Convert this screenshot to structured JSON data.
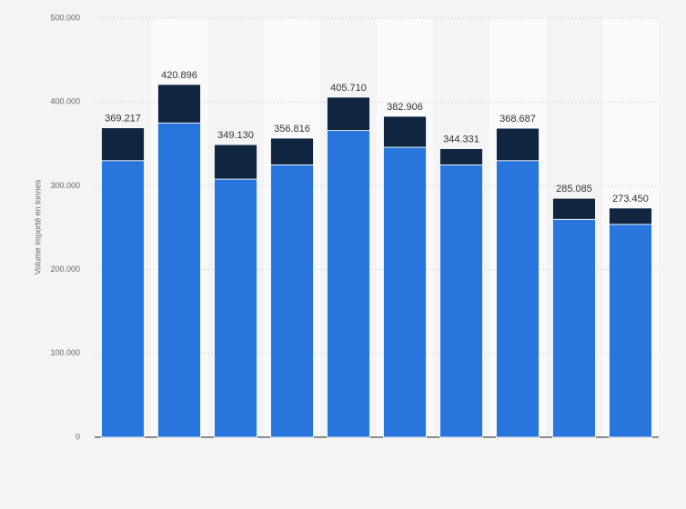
{
  "chart_data": {
    "type": "stacked-bar",
    "y_label": "Volume importé en tonnes",
    "categories": [
      null,
      null,
      null,
      null,
      null,
      null,
      null,
      null,
      null,
      null
    ],
    "series": [
      {
        "color": "#2876dd",
        "values": [
          330000,
          375000,
          308000,
          325000,
          366000,
          346000,
          325000,
          330000,
          260000,
          254000
        ]
      },
      {
        "color": "#0f2540",
        "values": [
          39217,
          45896,
          41130,
          31816,
          39710,
          36906,
          19331,
          38687,
          25085,
          19450
        ]
      }
    ],
    "totals": {
      "values": [
        369217,
        420896,
        349130,
        356816,
        405710,
        382906,
        344331,
        368687,
        285085,
        273450
      ],
      "value_labels": [
        "369.217",
        "420.896",
        "349.130",
        "356.816",
        "405.710",
        "382.906",
        "344.331",
        "368.687",
        "285.085",
        "273.450"
      ]
    },
    "ylim": [
      0,
      500000
    ],
    "yticks": [
      0,
      {
        "value": 100000,
        "label": "100.000"
      },
      {
        "value": 200000,
        "label": "200.000"
      },
      {
        "value": 300000,
        "label": "300.000"
      },
      {
        "value": 400000,
        "label": "400.000"
      },
      {
        "value": 500000,
        "label": "500.000"
      }
    ],
    "grid": true
  }
}
